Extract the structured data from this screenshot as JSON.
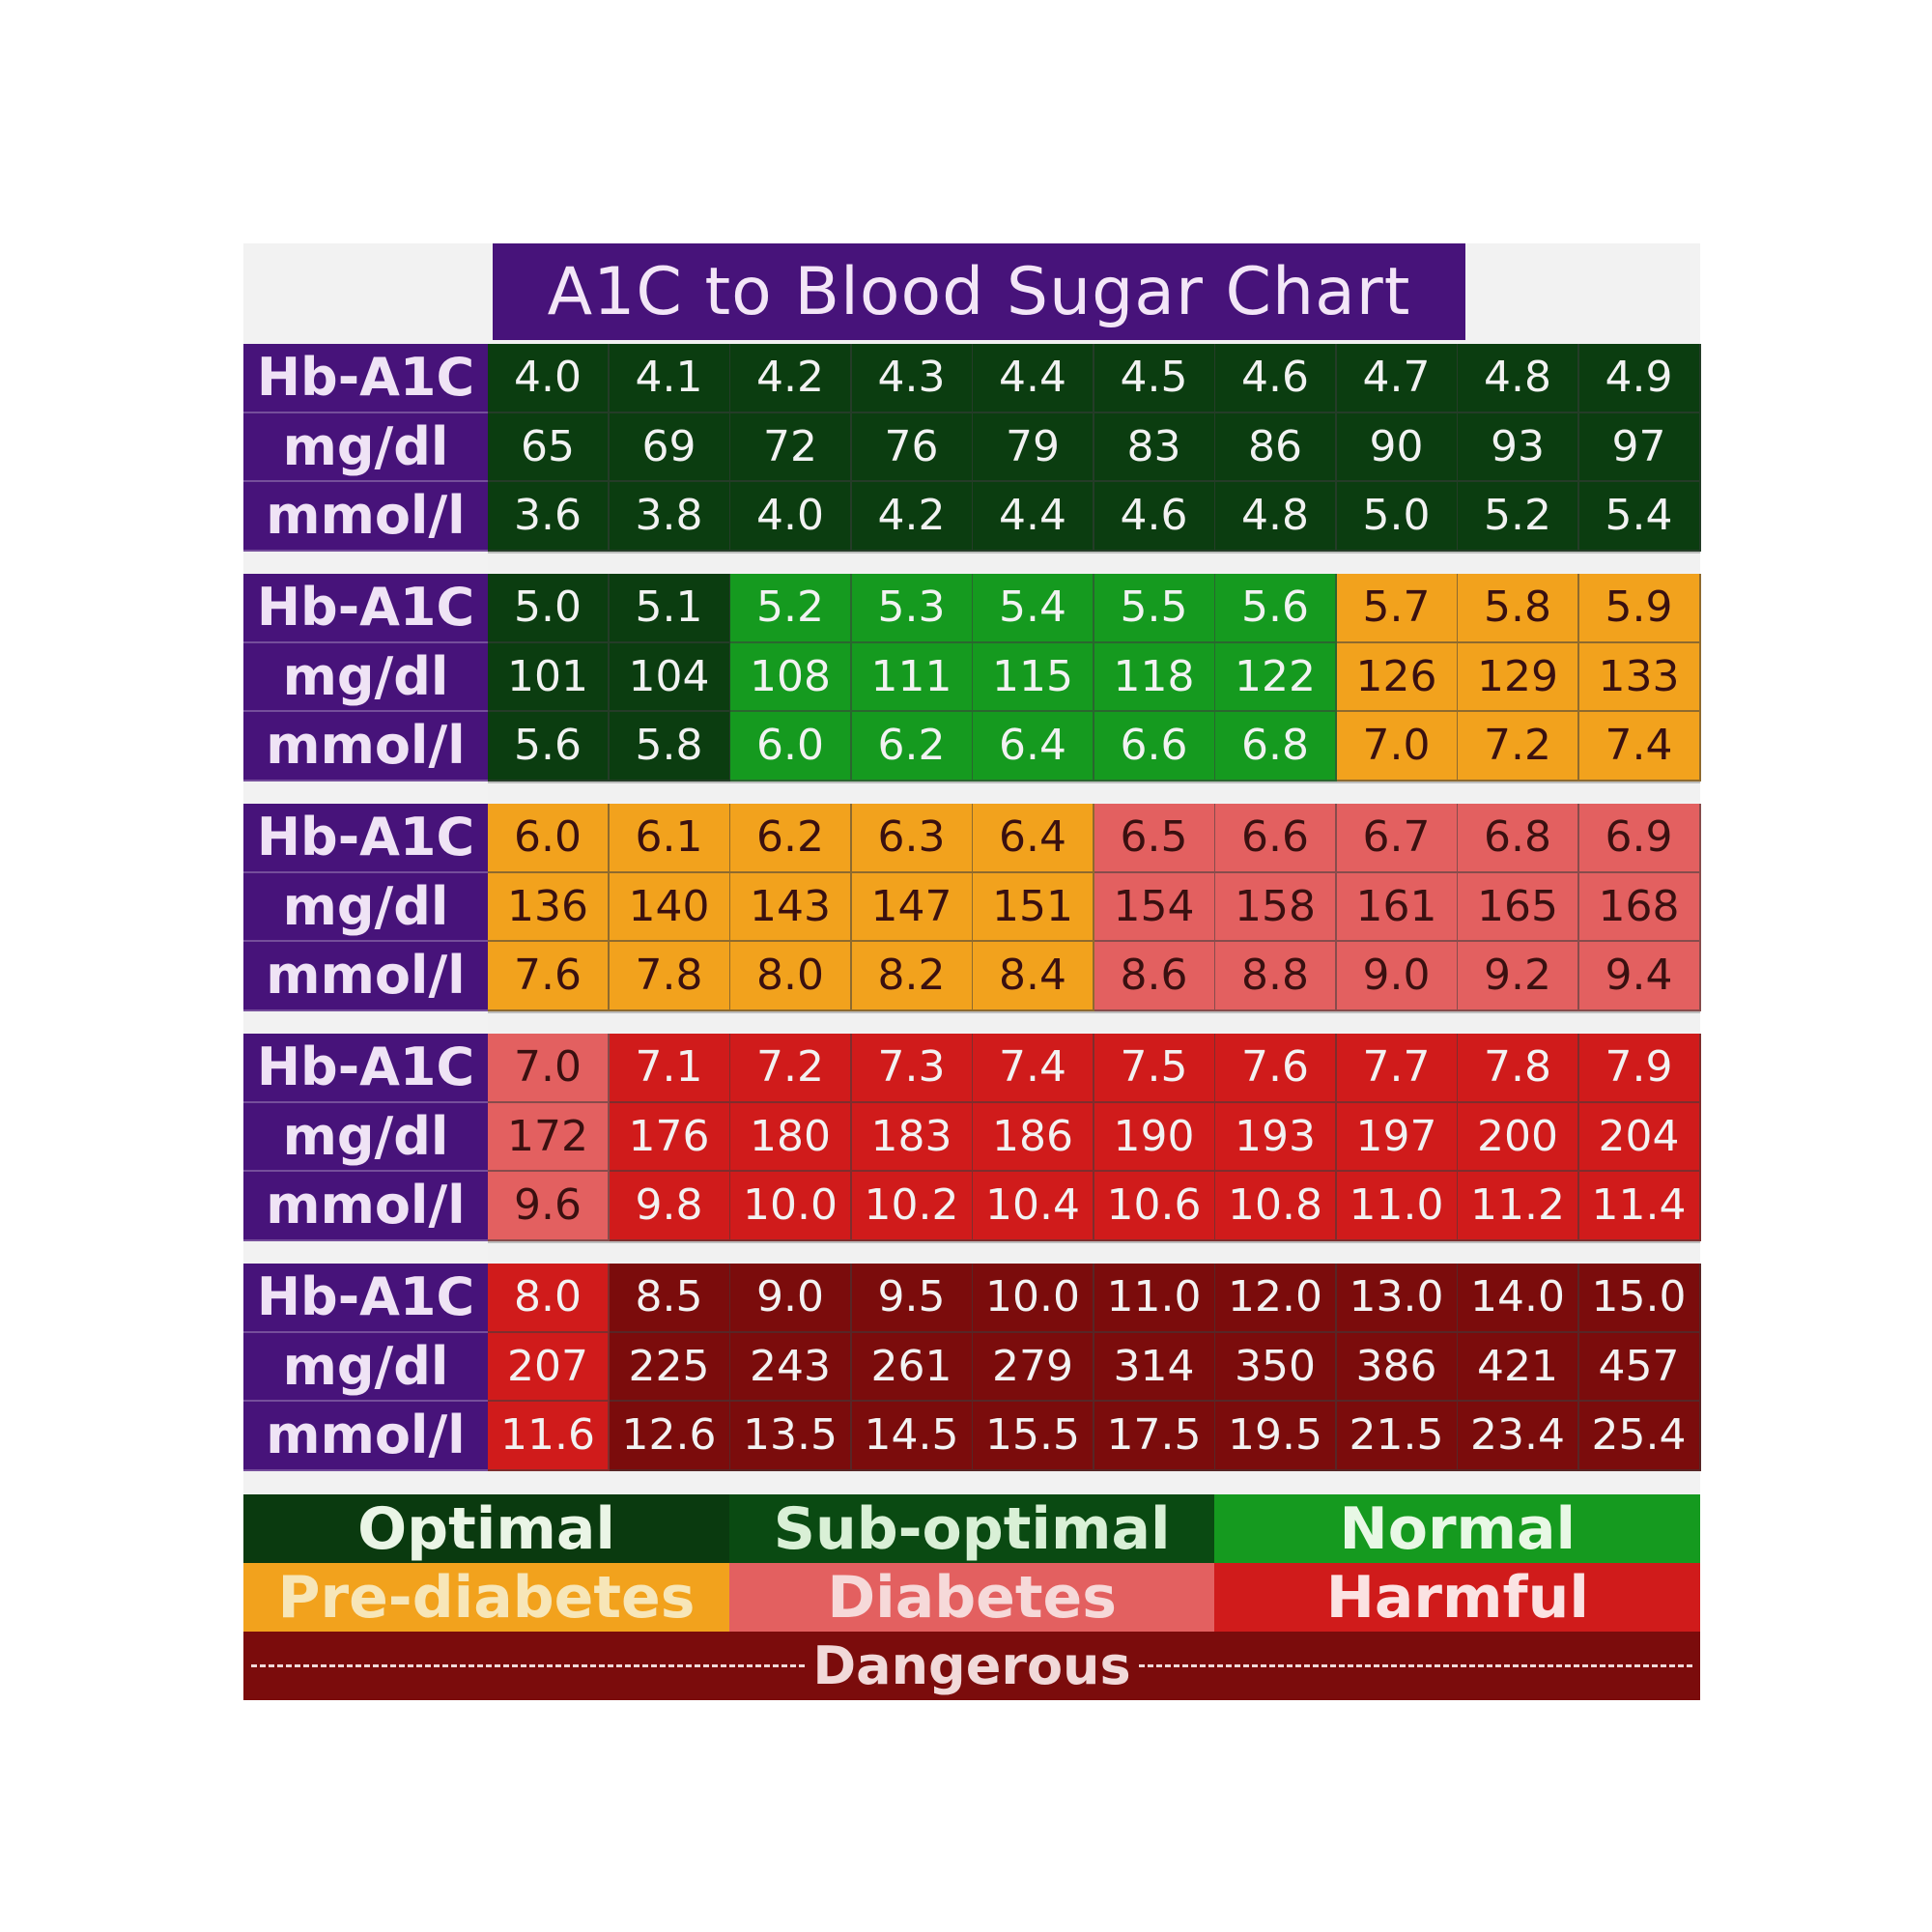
{
  "title": "A1C to Blood Sugar Chart",
  "chart_data": {
    "type": "table",
    "row_labels": [
      "Hb-A1C",
      "mg/dl",
      "mmol/l"
    ],
    "blocks": [
      {
        "hba1c": [
          "4.0",
          "4.1",
          "4.2",
          "4.3",
          "4.4",
          "4.5",
          "4.6",
          "4.7",
          "4.8",
          "4.9"
        ],
        "mgdl": [
          "65",
          "69",
          "72",
          "76",
          "79",
          "83",
          "86",
          "90",
          "93",
          "97"
        ],
        "mmoll": [
          "3.6",
          "3.8",
          "4.0",
          "4.2",
          "4.4",
          "4.6",
          "4.8",
          "5.0",
          "5.2",
          "5.4"
        ],
        "category": [
          "optimal",
          "optimal",
          "optimal",
          "optimal",
          "optimal",
          "optimal",
          "optimal",
          "optimal",
          "optimal",
          "optimal"
        ]
      },
      {
        "hba1c": [
          "5.0",
          "5.1",
          "5.2",
          "5.3",
          "5.4",
          "5.5",
          "5.6",
          "5.7",
          "5.8",
          "5.9"
        ],
        "mgdl": [
          "101",
          "104",
          "108",
          "111",
          "115",
          "118",
          "122",
          "126",
          "129",
          "133"
        ],
        "mmoll": [
          "5.6",
          "5.8",
          "6.0",
          "6.2",
          "6.4",
          "6.6",
          "6.8",
          "7.0",
          "7.2",
          "7.4"
        ],
        "category": [
          "optimal",
          "optimal",
          "normal",
          "normal",
          "normal",
          "normal",
          "normal",
          "prediabetes",
          "prediabetes",
          "prediabetes"
        ]
      },
      {
        "hba1c": [
          "6.0",
          "6.1",
          "6.2",
          "6.3",
          "6.4",
          "6.5",
          "6.6",
          "6.7",
          "6.8",
          "6.9"
        ],
        "mgdl": [
          "136",
          "140",
          "143",
          "147",
          "151",
          "154",
          "158",
          "161",
          "165",
          "168"
        ],
        "mmoll": [
          "7.6",
          "7.8",
          "8.0",
          "8.2",
          "8.4",
          "8.6",
          "8.8",
          "9.0",
          "9.2",
          "9.4"
        ],
        "category": [
          "prediabetes",
          "prediabetes",
          "prediabetes",
          "prediabetes",
          "prediabetes",
          "diabetes",
          "diabetes",
          "diabetes",
          "diabetes",
          "diabetes"
        ]
      },
      {
        "hba1c": [
          "7.0",
          "7.1",
          "7.2",
          "7.3",
          "7.4",
          "7.5",
          "7.6",
          "7.7",
          "7.8",
          "7.9"
        ],
        "mgdl": [
          "172",
          "176",
          "180",
          "183",
          "186",
          "190",
          "193",
          "197",
          "200",
          "204"
        ],
        "mmoll": [
          "9.6",
          "9.8",
          "10.0",
          "10.2",
          "10.4",
          "10.6",
          "10.8",
          "11.0",
          "11.2",
          "11.4"
        ],
        "category": [
          "diabetes",
          "harmful",
          "harmful",
          "harmful",
          "harmful",
          "harmful",
          "harmful",
          "harmful",
          "harmful",
          "harmful"
        ]
      },
      {
        "hba1c": [
          "8.0",
          "8.5",
          "9.0",
          "9.5",
          "10.0",
          "11.0",
          "12.0",
          "13.0",
          "14.0",
          "15.0"
        ],
        "mgdl": [
          "207",
          "225",
          "243",
          "261",
          "279",
          "314",
          "350",
          "386",
          "421",
          "457"
        ],
        "mmoll": [
          "11.6",
          "12.6",
          "13.5",
          "14.5",
          "15.5",
          "17.5",
          "19.5",
          "21.5",
          "23.4",
          "25.4"
        ],
        "category": [
          "harmful",
          "dangerous",
          "dangerous",
          "dangerous",
          "dangerous",
          "dangerous",
          "dangerous",
          "dangerous",
          "dangerous",
          "dangerous"
        ]
      }
    ],
    "legend": [
      {
        "key": "optimal",
        "label": "Optimal"
      },
      {
        "key": "suboptimal",
        "label": "Sub-optimal"
      },
      {
        "key": "normal",
        "label": "Normal"
      },
      {
        "key": "prediabetes",
        "label": "Pre-diabetes"
      },
      {
        "key": "diabetes",
        "label": "Diabetes"
      },
      {
        "key": "harmful",
        "label": "Harmful"
      },
      {
        "key": "dangerous",
        "label": "Dangerous"
      }
    ]
  },
  "colors": {
    "purple": "#47137a",
    "optimal": "#0b3d10",
    "suboptimal": "#0a4a12",
    "normal": "#159a1f",
    "prediabetes": "#f2a21d",
    "diabetes": "#e36060",
    "harmful": "#d01b1b",
    "dangerous": "#7b0c0c",
    "block_gap": "#f1f1f1",
    "light_text": "#f2f2f2",
    "dark_text": "#3a1010"
  }
}
